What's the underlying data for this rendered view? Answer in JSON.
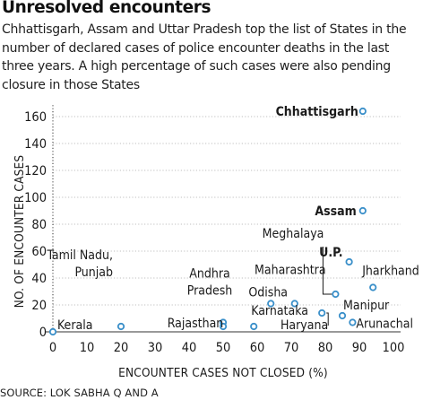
{
  "title": "Unresolved encounters",
  "subtitle": "Chhattisgarh, Assam and Uttar Pradesh top the list of States in the number of declared cases of police encounter deaths in the last three years. A high percentage of such cases were also pending closure in those States",
  "source": "SOURCE: LOK SABHA Q AND A",
  "colors": {
    "marker": "#3a8fc9",
    "text": "#1a1a1a",
    "axis": "#333333",
    "grid": "#bfbfbf"
  },
  "chart_data": {
    "type": "scatter",
    "xlabel": "ENCOUNTER CASES NOT CLOSED (%)",
    "ylabel": "NO. OF ENCOUNTER CASES",
    "xlim": [
      0,
      100
    ],
    "ylim": [
      0,
      170
    ],
    "x_ticks": [
      0,
      10,
      20,
      30,
      40,
      50,
      60,
      70,
      80,
      90,
      100
    ],
    "y_ticks": [
      0,
      20,
      40,
      60,
      80,
      100,
      120,
      140,
      160
    ],
    "grid": "horizontal dotted",
    "points": [
      {
        "label": "Chhattisgarh",
        "x": 91,
        "y": 164,
        "bold": true
      },
      {
        "label": "Assam",
        "x": 91,
        "y": 90,
        "bold": true
      },
      {
        "label": "U.P.",
        "x": 87,
        "y": 52,
        "bold": true
      },
      {
        "label": "Meghalaya",
        "x": 83,
        "y": 28,
        "bold": false
      },
      {
        "label": "Jharkhand",
        "x": 94,
        "y": 33,
        "bold": false
      },
      {
        "label": "Manipur",
        "x": 85,
        "y": 12,
        "bold": false
      },
      {
        "label": "Arunachal",
        "x": 88,
        "y": 7,
        "bold": false
      },
      {
        "label": "Haryana",
        "x": 79,
        "y": 14,
        "bold": false
      },
      {
        "label": "Maharashtra",
        "x": 71,
        "y": 21,
        "bold": false
      },
      {
        "label": "Odisha",
        "x": 64,
        "y": 21,
        "bold": false
      },
      {
        "label": "Karnataka",
        "x": 59,
        "y": 4,
        "bold": false
      },
      {
        "label": "Andhra Pradesh",
        "x": 50,
        "y": 7,
        "bold": false
      },
      {
        "label": "Rajasthan",
        "x": 50,
        "y": 4,
        "bold": false
      },
      {
        "label": "Tamil Nadu, Punjab",
        "x": 20,
        "y": 4,
        "bold": false
      },
      {
        "label": "Kerala",
        "x": 0,
        "y": 0,
        "bold": false
      }
    ]
  }
}
